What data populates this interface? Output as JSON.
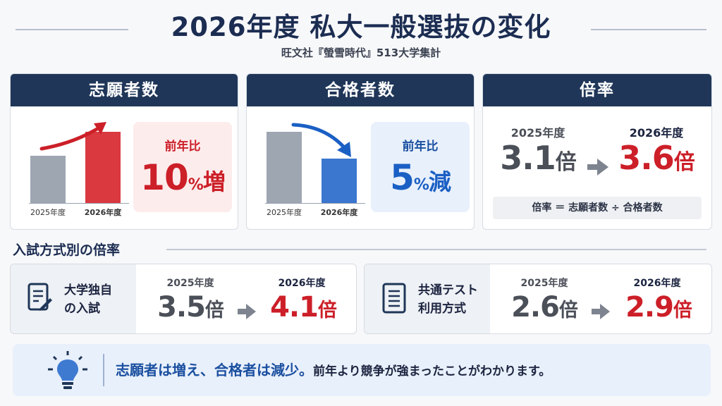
{
  "header": {
    "title": "2026年度 私大一般選抜の変化",
    "subtitle": "旺文社『螢雪時代』513大学集計"
  },
  "applicants_card": {
    "title": "志願者数",
    "bar_labels": [
      "2025年度",
      "2026年度"
    ],
    "change_label": "前年比",
    "change_number": "10",
    "change_unit": "%",
    "change_word": "増"
  },
  "passers_card": {
    "title": "合格者数",
    "bar_labels": [
      "2025年度",
      "2026年度"
    ],
    "change_label": "前年比",
    "change_number": "5",
    "change_unit": "%",
    "change_word": "減"
  },
  "ratio_card": {
    "title": "倍率",
    "year_before": "2025年度",
    "year_after": "2026年度",
    "value_before": "3.1",
    "value_after": "3.6",
    "unit": "倍",
    "formula": "倍率 ＝ 志願者数 ÷ 合格者数"
  },
  "section": {
    "title": "入試方式別の倍率"
  },
  "methods": [
    {
      "name_line1": "大学独自",
      "name_line2": "の入試",
      "year_before": "2025年度",
      "year_after": "2026年度",
      "value_before": "3.5",
      "value_after": "4.1",
      "unit": "倍"
    },
    {
      "name_line1": "共通テスト",
      "name_line2": "利用方式",
      "year_before": "2025年度",
      "year_after": "2026年度",
      "value_before": "2.6",
      "value_after": "2.9",
      "unit": "倍"
    }
  ],
  "banner": {
    "emphasis": "志願者は増え、合格者は減少。",
    "rest": "前年より競争が強まったことがわかります。"
  },
  "colors": {
    "navy": "#1f3658",
    "red": "#cc1f28",
    "blue": "#1a5fc4",
    "gray_bar": "#9ea6b2"
  },
  "icons": [
    "trend-up-arrow-icon",
    "trend-down-arrow-icon",
    "arrow-right-icon",
    "document-pen-icon",
    "document-list-icon",
    "lightbulb-icon"
  ]
}
